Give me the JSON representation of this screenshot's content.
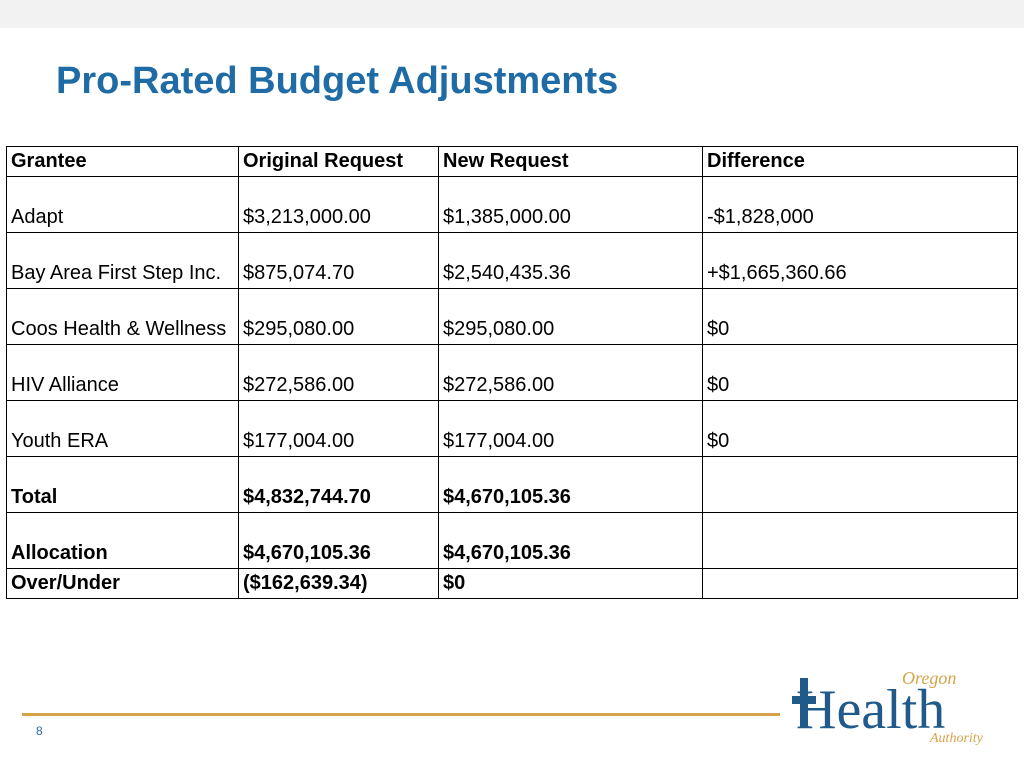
{
  "title": "Pro-Rated Budget Adjustments",
  "page_number": "8",
  "colors": {
    "title": "#1f6ba5",
    "rule": "#d7a349",
    "logo_blue": "#1f5a8a",
    "logo_orange": "#d7a349",
    "pagenum": "#2a6ea6",
    "background": "#f2f2f2"
  },
  "logo": {
    "line1": "Oregon",
    "line2": "Health",
    "line3": "Authority"
  },
  "table": {
    "columns": [
      "Grantee",
      "Original Request",
      "New Request",
      "Difference"
    ],
    "rows": [
      {
        "cells": [
          "Adapt",
          "$3,213,000.00",
          "$1,385,000.00",
          " -$1,828,000"
        ],
        "tall": true,
        "bold": false
      },
      {
        "cells": [
          "Bay Area First Step Inc.",
          "$875,074.70",
          "$2,540,435.36",
          "+$1,665,360.66"
        ],
        "tall": true,
        "bold": false
      },
      {
        "cells": [
          "Coos Health & Wellness",
          "$295,080.00",
          "$295,080.00",
          "$0"
        ],
        "tall": true,
        "bold": false
      },
      {
        "cells": [
          "HIV Alliance",
          "$272,586.00",
          "$272,586.00",
          "$0"
        ],
        "tall": true,
        "bold": false
      },
      {
        "cells": [
          "Youth ERA",
          "$177,004.00",
          "$177,004.00",
          "$0"
        ],
        "tall": true,
        "bold": false
      },
      {
        "cells": [
          "Total",
          "$4,832,744.70",
          "$4,670,105.36",
          ""
        ],
        "tall": true,
        "bold": true
      },
      {
        "cells": [
          "Allocation",
          "$4,670,105.36",
          "$4,670,105.36",
          ""
        ],
        "tall": true,
        "bold": true
      },
      {
        "cells": [
          "Over/Under",
          "($162,639.34)",
          "$0",
          ""
        ],
        "tall": false,
        "bold": true
      }
    ]
  }
}
